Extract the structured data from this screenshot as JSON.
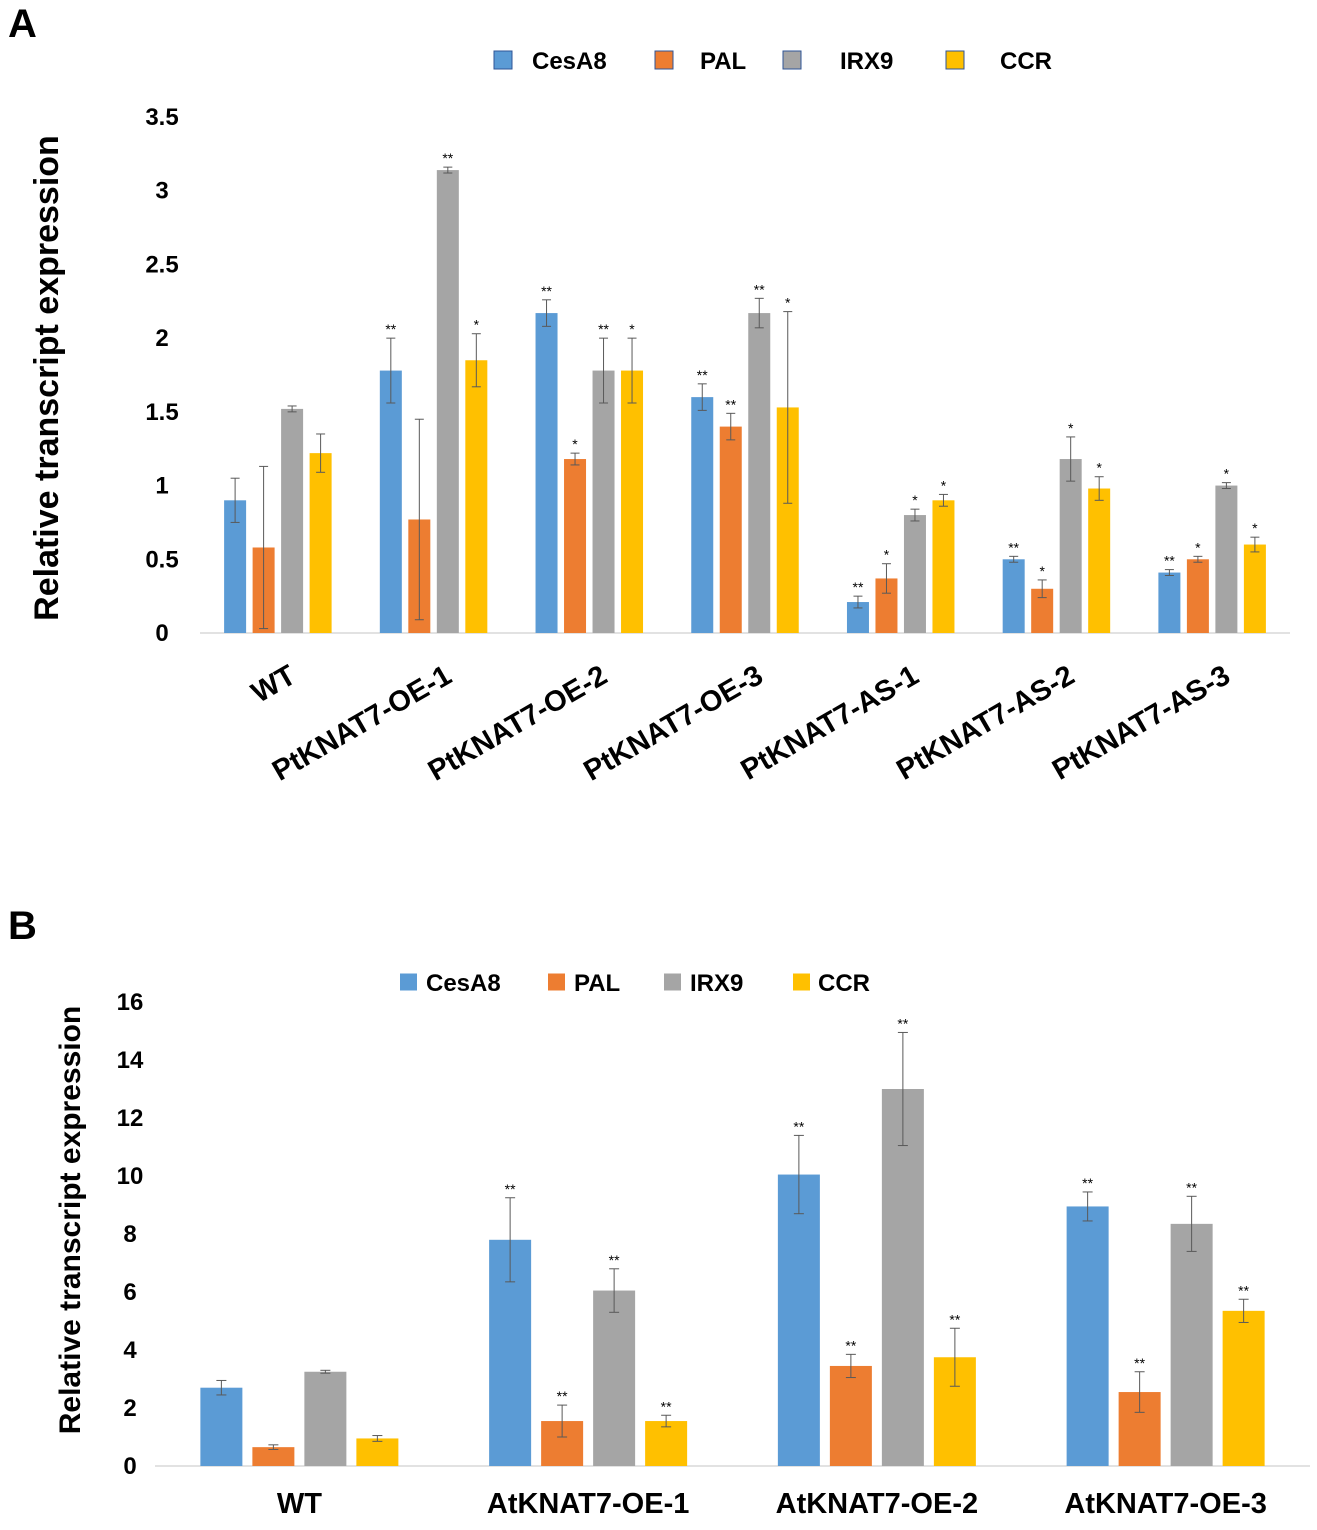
{
  "panels": {
    "a_label": "A",
    "b_label": "B"
  },
  "colors": {
    "CesA8": "#5b9bd5",
    "PAL": "#ed7d31",
    "IRX9": "#a5a5a5",
    "CCR": "#ffc000",
    "axis": "#d9d9d9",
    "errorbar": "#595959"
  },
  "chart_data": [
    {
      "type": "bar",
      "panel": "A",
      "title": "",
      "xlabel": "",
      "ylabel": "Relative transcript expression",
      "ylim": [
        0,
        3.5
      ],
      "yticks": [
        0,
        0.5,
        1,
        1.5,
        2,
        2.5,
        3,
        3.5
      ],
      "ytick_labels": [
        "0",
        "0.5",
        "1",
        "1.5",
        "2",
        "2.5",
        "3",
        "3.5"
      ],
      "grid": false,
      "legend": "top",
      "categories": [
        "WT",
        "PtKNAT7-OE-1",
        "PtKNAT7-OE-2",
        "PtKNAT7-OE-3",
        "PtKNAT7-AS-1",
        "PtKNAT7-AS-2",
        "PtKNAT7-AS-3"
      ],
      "series": [
        {
          "name": "CesA8",
          "values": [
            0.9,
            1.78,
            2.17,
            1.6,
            0.21,
            0.5,
            0.41
          ],
          "errors": [
            0.15,
            0.22,
            0.09,
            0.09,
            0.04,
            0.02,
            0.02
          ],
          "sig": [
            "",
            "**",
            "**",
            "**",
            "**",
            "**",
            "**"
          ]
        },
        {
          "name": "PAL",
          "values": [
            0.58,
            0.77,
            1.18,
            1.4,
            0.37,
            0.3,
            0.5
          ],
          "errors": [
            0.55,
            0.68,
            0.04,
            0.09,
            0.1,
            0.06,
            0.02
          ],
          "sig": [
            "",
            "",
            "*",
            "**",
            "*",
            "*",
            "*"
          ]
        },
        {
          "name": "IRX9",
          "values": [
            1.52,
            3.14,
            1.78,
            2.17,
            0.8,
            1.18,
            1.0
          ],
          "errors": [
            0.02,
            0.02,
            0.22,
            0.1,
            0.04,
            0.15,
            0.02
          ],
          "sig": [
            "",
            "**",
            "**",
            "**",
            "*",
            "*",
            "*"
          ]
        },
        {
          "name": "CCR",
          "values": [
            1.22,
            1.85,
            1.78,
            1.53,
            0.9,
            0.98,
            0.6
          ],
          "errors": [
            0.13,
            0.18,
            0.22,
            0.65,
            0.04,
            0.08,
            0.05
          ],
          "sig": [
            "",
            "*",
            "*",
            "*",
            "*",
            "*",
            "*"
          ]
        }
      ]
    },
    {
      "type": "bar",
      "panel": "B",
      "title": "",
      "xlabel": "",
      "ylabel": "Relative transcript expression",
      "ylim": [
        0,
        16
      ],
      "yticks": [
        0,
        2,
        4,
        6,
        8,
        10,
        12,
        14,
        16
      ],
      "ytick_labels": [
        "0",
        "2",
        "4",
        "6",
        "8",
        "10",
        "12",
        "14",
        "16"
      ],
      "grid": false,
      "legend": "top",
      "categories": [
        "WT",
        "AtKNAT7-OE-1",
        "AtKNAT7-OE-2",
        "AtKNAT7-OE-3"
      ],
      "series": [
        {
          "name": "CesA8",
          "values": [
            2.7,
            7.8,
            10.05,
            8.95
          ],
          "errors": [
            0.25,
            1.45,
            1.35,
            0.5
          ],
          "sig": [
            "",
            "**",
            "**",
            "**"
          ]
        },
        {
          "name": "PAL",
          "values": [
            0.65,
            1.55,
            3.45,
            2.55
          ],
          "errors": [
            0.08,
            0.55,
            0.4,
            0.7
          ],
          "sig": [
            "",
            "**",
            "**",
            "**"
          ]
        },
        {
          "name": "IRX9",
          "values": [
            3.25,
            6.05,
            13.0,
            8.35
          ],
          "errors": [
            0.05,
            0.75,
            1.95,
            0.95
          ],
          "sig": [
            "",
            "**",
            "**",
            "**"
          ]
        },
        {
          "name": "CCR",
          "values": [
            0.95,
            1.55,
            3.75,
            5.35
          ],
          "errors": [
            0.1,
            0.2,
            1.0,
            0.4
          ],
          "sig": [
            "",
            "**",
            "**",
            "**"
          ]
        }
      ]
    }
  ]
}
